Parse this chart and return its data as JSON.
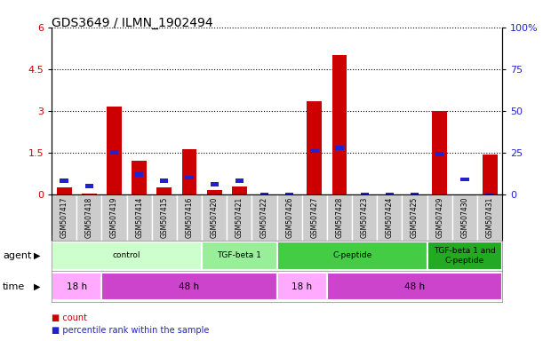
{
  "title": "GDS3649 / ILMN_1902494",
  "samples": [
    "GSM507417",
    "GSM507418",
    "GSM507419",
    "GSM507414",
    "GSM507415",
    "GSM507416",
    "GSM507420",
    "GSM507421",
    "GSM507422",
    "GSM507426",
    "GSM507427",
    "GSM507428",
    "GSM507423",
    "GSM507424",
    "GSM507425",
    "GSM507429",
    "GSM507430",
    "GSM507431"
  ],
  "count_values": [
    0.25,
    0.04,
    3.15,
    1.2,
    0.25,
    1.62,
    0.15,
    0.28,
    0.0,
    0.0,
    3.35,
    5.0,
    0.0,
    0.0,
    0.0,
    3.0,
    0.0,
    1.42
  ],
  "percentile_values_pct": [
    8,
    5,
    25,
    12,
    8,
    10,
    6,
    8,
    0,
    0,
    26,
    28,
    0,
    0,
    0,
    24,
    9,
    0
  ],
  "count_color": "#cc0000",
  "percentile_color": "#2222cc",
  "ylim_left": [
    0,
    6
  ],
  "ylim_right": [
    0,
    100
  ],
  "yticks_left": [
    0,
    1.5,
    3.0,
    4.5,
    6.0
  ],
  "ytick_labels_left": [
    "0",
    "1.5",
    "3",
    "4.5",
    "6"
  ],
  "ytick_labels_right": [
    "0",
    "25",
    "50",
    "75",
    "100%"
  ],
  "agent_groups": [
    {
      "label": "control",
      "start": 0,
      "end": 6,
      "color": "#ccffcc"
    },
    {
      "label": "TGF-beta 1",
      "start": 6,
      "end": 9,
      "color": "#99ee99"
    },
    {
      "label": "C-peptide",
      "start": 9,
      "end": 15,
      "color": "#44cc44"
    },
    {
      "label": "TGF-beta 1 and\nC-peptide",
      "start": 15,
      "end": 18,
      "color": "#22aa22"
    }
  ],
  "time_groups": [
    {
      "label": "18 h",
      "start": 0,
      "end": 2,
      "color": "#ffaaff"
    },
    {
      "label": "48 h",
      "start": 2,
      "end": 9,
      "color": "#cc44cc"
    },
    {
      "label": "18 h",
      "start": 9,
      "end": 11,
      "color": "#ffaaff"
    },
    {
      "label": "48 h",
      "start": 11,
      "end": 18,
      "color": "#cc44cc"
    }
  ],
  "bg_color": "#ffffff",
  "tick_area_color": "#cccccc",
  "agent_label": "agent",
  "time_label": "time",
  "legend_count": "count",
  "legend_percentile": "percentile rank within the sample"
}
